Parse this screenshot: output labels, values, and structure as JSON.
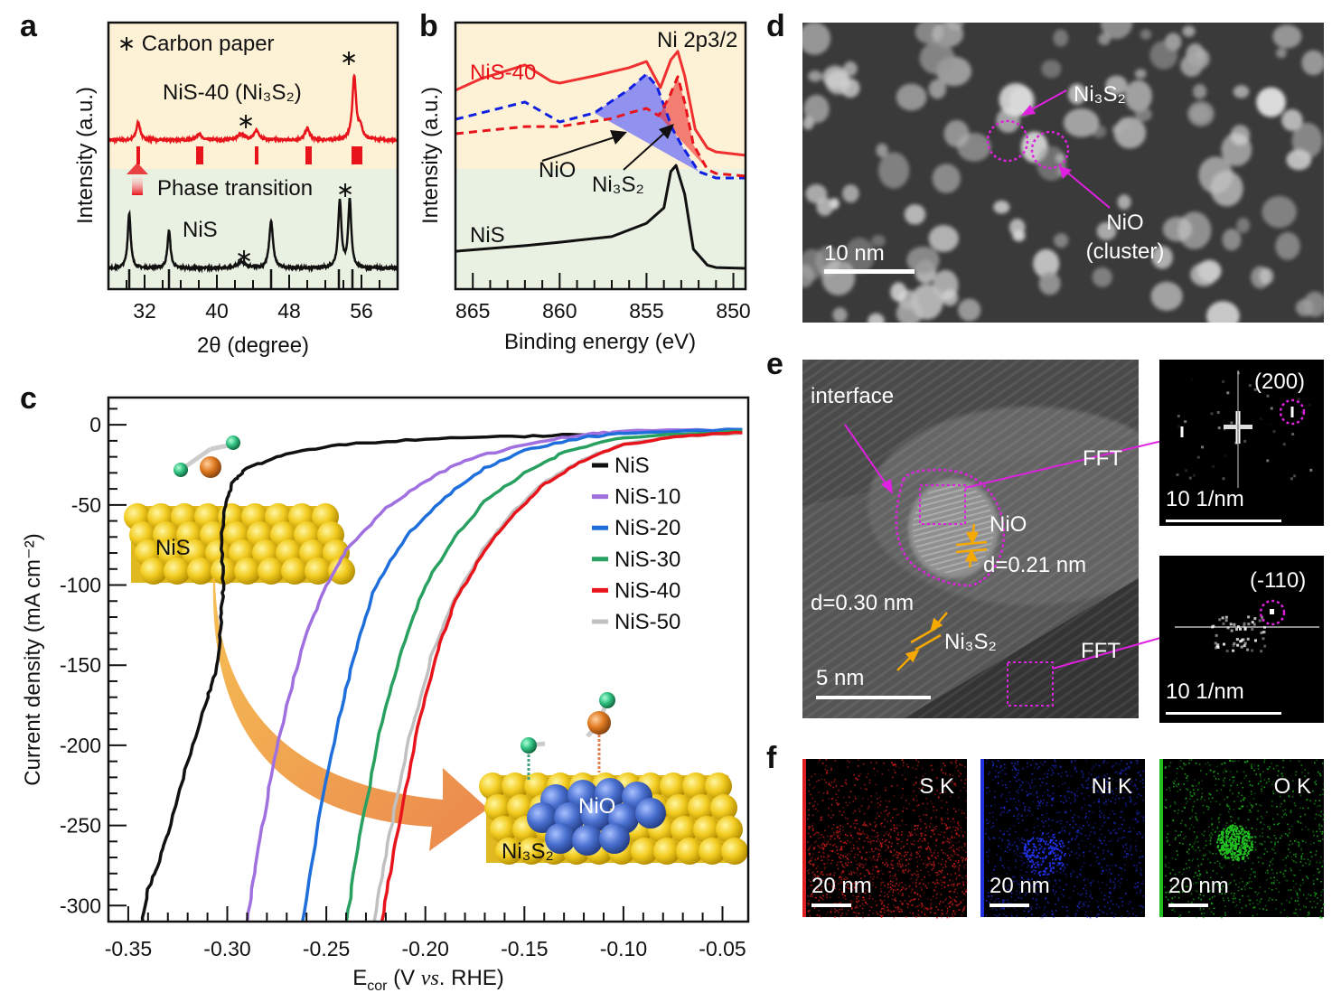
{
  "panels": {
    "a": {
      "letter": "a",
      "star_note": "∗  Carbon paper",
      "red_label": "NiS-40 (Ni₃S₂)",
      "black_label": "NiS",
      "transition": "Phase transition",
      "star": "∗"
    },
    "b": {
      "letter": "b",
      "red_label": "NiS-40",
      "peak_label": "Ni 2p3/2",
      "nio": "NiO",
      "ni3s2": "Ni₃S₂",
      "black_label": "NiS"
    },
    "c": {
      "letter": "c",
      "nis_slab": "NiS",
      "nio_slab": "NiO",
      "ni3s2_slab": "Ni₃S₂"
    },
    "d": {
      "letter": "d",
      "ni3s2": "Ni₃S₂",
      "nio": "NiO",
      "cluster": "(cluster)",
      "scale": "10 nm"
    },
    "e": {
      "letter": "e",
      "interface": "interface",
      "fft1": "FFT",
      "fft2": "FFT",
      "nio": "NiO",
      "d1": "d=0.21 nm",
      "d2": "d=0.30 nm",
      "ni3s2": "Ni₃S₂",
      "scale": "5 nm",
      "fft_top_index": "(200)",
      "fft_bot_index": "(-110)",
      "fft_scale": "10 1/nm"
    },
    "f": {
      "letter": "f",
      "maps": [
        {
          "label": "S K",
          "color": "#e02020"
        },
        {
          "label": "Ni K",
          "color": "#2030e0"
        },
        {
          "label": "O K",
          "color": "#20c020"
        }
      ],
      "scale": "20 nm"
    }
  },
  "chart_data": [
    {
      "type": "line",
      "panel": "a",
      "xlabel": "2θ (degree)",
      "ylabel": "Intensity (a.u.)",
      "xlim": [
        28,
        60
      ],
      "ylim": [
        0,
        1
      ],
      "xticks": [
        32,
        40,
        48,
        56
      ],
      "tick_labels": [
        "32",
        "40",
        "48",
        "56"
      ],
      "series": [
        {
          "name": "NiS-40 (Ni₃S₂)",
          "color": "#e8141c",
          "baseline": 0.559,
          "peaks": [
            [
              31.3,
              0.068,
              0.25
            ],
            [
              38.0,
              0.024,
              0.3
            ],
            [
              42.7,
              0.02,
              0.5
            ],
            [
              44.4,
              0.034,
              0.35
            ],
            [
              50.0,
              0.044,
              0.3
            ],
            [
              55.2,
              0.238,
              0.25
            ],
            [
              55.9,
              0.04,
              0.3
            ]
          ],
          "reference_sticks": [
            31.3,
            37.9,
            38.3,
            44.4,
            50.0,
            50.3,
            55.1,
            55.5,
            55.9
          ]
        },
        {
          "name": "NiS",
          "color": "#111111",
          "baseline": 0.078,
          "peaks": [
            [
              30.3,
              0.207,
              0.2
            ],
            [
              34.7,
              0.142,
              0.2
            ],
            [
              42.7,
              0.024,
              0.5
            ],
            [
              46.0,
              0.176,
              0.25
            ],
            [
              53.6,
              0.25,
              0.22
            ],
            [
              54.7,
              0.255,
              0.2
            ]
          ],
          "reference_sticks": [
            30.3,
            34.7,
            46.0,
            53.5,
            55.0
          ]
        }
      ],
      "annotations": [
        "∗ Carbon paper"
      ]
    },
    {
      "type": "line",
      "panel": "b",
      "xlabel": "Binding energy (eV)",
      "ylabel": "Intensity (a.u.)",
      "xlim": [
        866,
        849.3
      ],
      "ylim": [
        0,
        1
      ],
      "xticks": [
        865,
        860,
        855,
        850
      ],
      "tick_labels": [
        "865",
        "860",
        "855",
        "850"
      ],
      "series": [
        {
          "name": "NiS-40",
          "color": "#f03030",
          "style": "solid",
          "points": [
            [
              866,
              0.746
            ],
            [
              864.5,
              0.79
            ],
            [
              862,
              0.841
            ],
            [
              860.5,
              0.78
            ],
            [
              860,
              0.773
            ],
            [
              858,
              0.8
            ],
            [
              856,
              0.831
            ],
            [
              855,
              0.854
            ],
            [
              854.2,
              0.756
            ],
            [
              853.6,
              0.86
            ],
            [
              853.2,
              0.892
            ],
            [
              852.8,
              0.8
            ],
            [
              852.2,
              0.6
            ],
            [
              851.5,
              0.53
            ],
            [
              851,
              0.515
            ],
            [
              849.3,
              0.502
            ]
          ]
        },
        {
          "name": "NiO",
          "color": "#1020e0",
          "style": "dashed",
          "points": [
            [
              866,
              0.637
            ],
            [
              862,
              0.702
            ],
            [
              860,
              0.627
            ],
            [
              858,
              0.661
            ],
            [
              856,
              0.75
            ],
            [
              855,
              0.807
            ],
            [
              854.4,
              0.76
            ],
            [
              853.5,
              0.6
            ],
            [
              853,
              0.542
            ],
            [
              852,
              0.441
            ],
            [
              851,
              0.417
            ],
            [
              849.3,
              0.417
            ]
          ]
        },
        {
          "name": "Ni₃S₂",
          "color": "#e8141c",
          "style": "dashed",
          "points": [
            [
              866,
              0.583
            ],
            [
              862,
              0.61
            ],
            [
              860,
              0.61
            ],
            [
              857,
              0.64
            ],
            [
              856,
              0.661
            ],
            [
              855,
              0.678
            ],
            [
              854.3,
              0.651
            ],
            [
              853.7,
              0.719
            ],
            [
              853.2,
              0.797
            ],
            [
              852.8,
              0.7
            ],
            [
              852.3,
              0.542
            ],
            [
              851.5,
              0.45
            ],
            [
              851,
              0.434
            ],
            [
              849.3,
              0.424
            ]
          ]
        },
        {
          "name": "NiS",
          "color": "#111111",
          "style": "solid",
          "points": [
            [
              866,
              0.142
            ],
            [
              862,
              0.163
            ],
            [
              860,
              0.176
            ],
            [
              857,
              0.197
            ],
            [
              855,
              0.247
            ],
            [
              854,
              0.305
            ],
            [
              853.6,
              0.441
            ],
            [
              853.3,
              0.464
            ],
            [
              852.8,
              0.356
            ],
            [
              852.3,
              0.15
            ],
            [
              851.5,
              0.09
            ],
            [
              851,
              0.081
            ],
            [
              849.3,
              0.078
            ]
          ]
        }
      ]
    },
    {
      "type": "line",
      "panel": "c",
      "xlabel": "E_cor (V vs. RHE)",
      "xlabel_main": "E",
      "xlabel_sub": "cor",
      "xlabel_rest": " (V ",
      "xlabel_vs": "vs",
      "xlabel_end": ". RHE)",
      "ylabel": "Current density (mA cm⁻²)",
      "xlim": [
        -0.36,
        -0.037
      ],
      "ylim": [
        -310,
        17
      ],
      "xticks": [
        -0.35,
        -0.3,
        -0.25,
        -0.2,
        -0.15,
        -0.1,
        -0.05
      ],
      "x_tick_labels": [
        "-0.35",
        "-0.30",
        "-0.25",
        "-0.20",
        "-0.15",
        "-0.10",
        "-0.05"
      ],
      "yticks": [
        0,
        -50,
        -100,
        -150,
        -200,
        -250,
        -300
      ],
      "y_tick_labels": [
        "0",
        "-50",
        "-100",
        "-150",
        "-200",
        "-250",
        "-300"
      ],
      "legend": "right",
      "series": [
        {
          "name": "NiS",
          "color": "#111111",
          "points": [
            [
              -0.343,
              -310
            ],
            [
              -0.34,
              -290
            ],
            [
              -0.335,
              -275
            ],
            [
              -0.33,
              -255
            ],
            [
              -0.32,
              -210
            ],
            [
              -0.31,
              -170
            ],
            [
              -0.305,
              -150
            ],
            [
              -0.303,
              -120
            ],
            [
              -0.302,
              -100
            ],
            [
              -0.303,
              -70
            ],
            [
              -0.301,
              -50
            ],
            [
              -0.297,
              -35
            ],
            [
              -0.29,
              -27
            ],
            [
              -0.27,
              -18
            ],
            [
              -0.24,
              -12
            ],
            [
              -0.2,
              -9
            ],
            [
              -0.15,
              -7
            ],
            [
              -0.113,
              -6
            ]
          ]
        },
        {
          "name": "NiS-10",
          "color": "#a070e0",
          "points": [
            [
              -0.29,
              -310
            ],
            [
              -0.285,
              -270
            ],
            [
              -0.278,
              -220
            ],
            [
              -0.27,
              -175
            ],
            [
              -0.26,
              -130
            ],
            [
              -0.25,
              -100
            ],
            [
              -0.24,
              -78
            ],
            [
              -0.22,
              -52
            ],
            [
              -0.2,
              -35
            ],
            [
              -0.18,
              -22
            ],
            [
              -0.15,
              -12
            ],
            [
              -0.12,
              -6
            ],
            [
              -0.1,
              -4
            ],
            [
              -0.04,
              -3
            ]
          ]
        },
        {
          "name": "NiS-20",
          "color": "#1e6fdc",
          "points": [
            [
              -0.262,
              -310
            ],
            [
              -0.255,
              -255
            ],
            [
              -0.245,
              -190
            ],
            [
              -0.235,
              -140
            ],
            [
              -0.225,
              -100
            ],
            [
              -0.21,
              -70
            ],
            [
              -0.19,
              -45
            ],
            [
              -0.17,
              -27
            ],
            [
              -0.15,
              -16
            ],
            [
              -0.12,
              -8
            ],
            [
              -0.1,
              -5
            ],
            [
              -0.04,
              -3
            ]
          ]
        },
        {
          "name": "NiS-30",
          "color": "#27a060",
          "points": [
            [
              -0.24,
              -310
            ],
            [
              -0.232,
              -250
            ],
            [
              -0.222,
              -185
            ],
            [
              -0.212,
              -140
            ],
            [
              -0.2,
              -100
            ],
            [
              -0.185,
              -70
            ],
            [
              -0.17,
              -48
            ],
            [
              -0.15,
              -30
            ],
            [
              -0.13,
              -17
            ],
            [
              -0.1,
              -8
            ],
            [
              -0.04,
              -4
            ]
          ]
        },
        {
          "name": "NiS-50",
          "color": "#c0c0c0",
          "points": [
            [
              -0.226,
              -310
            ],
            [
              -0.218,
              -255
            ],
            [
              -0.208,
              -195
            ],
            [
              -0.197,
              -145
            ],
            [
              -0.186,
              -110
            ],
            [
              -0.171,
              -78
            ],
            [
              -0.156,
              -55
            ],
            [
              -0.141,
              -37
            ],
            [
              -0.121,
              -22
            ],
            [
              -0.1,
              -12
            ],
            [
              -0.07,
              -7
            ],
            [
              -0.04,
              -5
            ]
          ]
        },
        {
          "name": "NiS-40",
          "color": "#e8141c",
          "points": [
            [
              -0.222,
              -310
            ],
            [
              -0.215,
              -260
            ],
            [
              -0.205,
              -195
            ],
            [
              -0.195,
              -145
            ],
            [
              -0.185,
              -110
            ],
            [
              -0.17,
              -78
            ],
            [
              -0.155,
              -55
            ],
            [
              -0.14,
              -37
            ],
            [
              -0.12,
              -22
            ],
            [
              -0.1,
              -12
            ],
            [
              -0.07,
              -7
            ],
            [
              -0.04,
              -5
            ]
          ]
        }
      ],
      "legend_order": [
        "NiS",
        "NiS-10",
        "NiS-20",
        "NiS-30",
        "NiS-40",
        "NiS-50"
      ]
    }
  ]
}
